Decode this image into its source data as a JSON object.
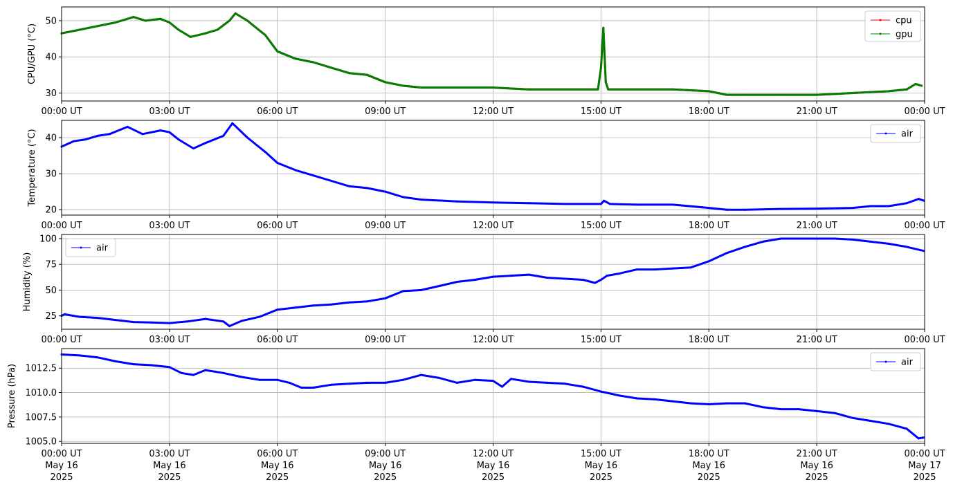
{
  "figure": {
    "x_tick_labels": [
      "00:00 UT",
      "03:00 UT",
      "06:00 UT",
      "09:00 UT",
      "12:00 UT",
      "15:00 UT",
      "18:00 UT",
      "21:00 UT",
      "00:00 UT"
    ],
    "x_tick_dates": [
      "May 16",
      "May 16",
      "May 16",
      "May 16",
      "May 16",
      "May 16",
      "May 16",
      "May 16",
      "May 17"
    ],
    "x_tick_years": [
      "2025",
      "2025",
      "2025",
      "2025",
      "2025",
      "2025",
      "2025",
      "2025",
      "2025"
    ]
  },
  "chart_data": [
    {
      "type": "line",
      "ylabel": "CPU/GPU (°C)",
      "xlim": [
        "2025-05-16 00:00",
        "2025-05-17 00:00"
      ],
      "ylim": [
        27.8,
        53.8
      ],
      "yticks": [
        30,
        40,
        50
      ],
      "ytick_labels": [
        "30",
        "40",
        "50"
      ],
      "grid": true,
      "legend": "upper right",
      "series": [
        {
          "name": "cpu",
          "color": "#ff0000",
          "x": [
            "00:00",
            "00:30",
            "01:00",
            "01:30",
            "02:00",
            "02:20",
            "02:45",
            "03:00",
            "03:15",
            "03:35",
            "04:00",
            "04:20",
            "04:40",
            "04:50",
            "05:10",
            "05:40",
            "06:00",
            "06:30",
            "07:00",
            "07:30",
            "08:00",
            "08:30",
            "09:00",
            "09:30",
            "10:00",
            "11:00",
            "12:00",
            "13:00",
            "14:00",
            "14:55",
            "15:00",
            "15:04",
            "15:08",
            "15:12",
            "16:00",
            "17:00",
            "18:00",
            "18:30",
            "19:00",
            "20:00",
            "21:00",
            "22:00",
            "23:00",
            "23:30",
            "23:45",
            "23:55"
          ],
          "y": [
            46.5,
            47.5,
            48.5,
            49.5,
            51,
            50,
            50.5,
            49.5,
            47.5,
            45.5,
            46.5,
            47.5,
            50,
            52,
            50,
            46,
            41.5,
            39.5,
            38.5,
            37,
            35.5,
            35,
            33,
            32,
            31.5,
            31.5,
            31.5,
            31,
            31,
            31,
            37,
            48,
            33,
            31,
            31,
            31,
            30.5,
            29.5,
            29.5,
            29.5,
            29.5,
            30,
            30.5,
            31,
            32.5,
            32
          ]
        },
        {
          "name": "gpu",
          "color": "#008000",
          "x": [
            "00:00",
            "00:30",
            "01:00",
            "01:30",
            "02:00",
            "02:20",
            "02:45",
            "03:00",
            "03:15",
            "03:35",
            "04:00",
            "04:20",
            "04:40",
            "04:50",
            "05:10",
            "05:40",
            "06:00",
            "06:30",
            "07:00",
            "07:30",
            "08:00",
            "08:30",
            "09:00",
            "09:30",
            "10:00",
            "11:00",
            "12:00",
            "13:00",
            "14:00",
            "14:55",
            "15:00",
            "15:04",
            "15:08",
            "15:12",
            "16:00",
            "17:00",
            "18:00",
            "18:30",
            "19:00",
            "20:00",
            "21:00",
            "22:00",
            "23:00",
            "23:30",
            "23:45",
            "23:55"
          ],
          "y": [
            46.5,
            47.5,
            48.5,
            49.5,
            51,
            50,
            50.5,
            49.5,
            47.5,
            45.5,
            46.5,
            47.5,
            50,
            52,
            50,
            46,
            41.5,
            39.5,
            38.5,
            37,
            35.5,
            35,
            33,
            32,
            31.5,
            31.5,
            31.5,
            31,
            31,
            31,
            37,
            48,
            33,
            31,
            31,
            31,
            30.5,
            29.5,
            29.5,
            29.5,
            29.5,
            30,
            30.5,
            31,
            32.5,
            32
          ]
        }
      ]
    },
    {
      "type": "line",
      "ylabel": "Temperature (°C)",
      "xlim": [
        "2025-05-16 00:00",
        "2025-05-17 00:00"
      ],
      "ylim": [
        18.5,
        44.8
      ],
      "yticks": [
        20,
        30,
        40
      ],
      "ytick_labels": [
        "20",
        "30",
        "40"
      ],
      "grid": true,
      "legend": "upper right",
      "series": [
        {
          "name": "air",
          "color": "#0000ff",
          "x": [
            "00:00",
            "00:20",
            "00:40",
            "01:00",
            "01:20",
            "01:50",
            "02:15",
            "02:45",
            "03:00",
            "03:15",
            "03:40",
            "04:00",
            "04:30",
            "04:45",
            "05:10",
            "05:40",
            "06:00",
            "06:30",
            "07:00",
            "07:30",
            "08:00",
            "08:30",
            "09:00",
            "09:30",
            "10:00",
            "11:00",
            "12:00",
            "13:00",
            "14:00",
            "15:00",
            "15:05",
            "15:15",
            "16:00",
            "17:00",
            "18:00",
            "18:30",
            "19:00",
            "20:00",
            "21:00",
            "22:00",
            "22:30",
            "23:00",
            "23:30",
            "23:50",
            "23:59"
          ],
          "y": [
            37.5,
            39,
            39.5,
            40.5,
            41,
            43,
            41,
            42,
            41.5,
            39.5,
            37,
            38.5,
            40.5,
            44,
            40,
            36,
            33,
            31,
            29.5,
            28,
            26.5,
            26,
            25,
            23.5,
            22.8,
            22.3,
            22,
            21.8,
            21.6,
            21.6,
            22.5,
            21.6,
            21.4,
            21.4,
            20.5,
            20,
            20,
            20.2,
            20.3,
            20.5,
            21,
            21,
            21.8,
            23,
            22.5
          ]
        }
      ]
    },
    {
      "type": "line",
      "ylabel": "Humidity (%)",
      "xlim": [
        "2025-05-16 00:00",
        "2025-05-17 00:00"
      ],
      "ylim": [
        12,
        104
      ],
      "yticks": [
        25,
        50,
        75,
        100
      ],
      "ytick_labels": [
        "25",
        "50",
        "75",
        "100"
      ],
      "grid": true,
      "legend": "upper left",
      "series": [
        {
          "name": "air",
          "color": "#0000ff",
          "x": [
            "00:00",
            "00:05",
            "00:30",
            "01:00",
            "01:30",
            "02:00",
            "02:30",
            "03:00",
            "03:30",
            "04:00",
            "04:30",
            "04:40",
            "05:00",
            "05:30",
            "06:00",
            "06:30",
            "07:00",
            "07:30",
            "08:00",
            "08:30",
            "09:00",
            "09:30",
            "10:00",
            "10:30",
            "11:00",
            "11:30",
            "12:00",
            "12:30",
            "13:00",
            "13:30",
            "14:00",
            "14:30",
            "14:50",
            "15:00",
            "15:10",
            "15:30",
            "16:00",
            "16:30",
            "17:00",
            "17:30",
            "18:00",
            "18:30",
            "19:00",
            "19:30",
            "20:00",
            "20:30",
            "21:00",
            "21:30",
            "22:00",
            "22:30",
            "23:00",
            "23:30",
            "23:59"
          ],
          "y": [
            25,
            26.5,
            24,
            23,
            21,
            19,
            18.5,
            18,
            19.5,
            22,
            19.5,
            15,
            20,
            24,
            31,
            33,
            35,
            36,
            38,
            39,
            42,
            49,
            50,
            54,
            58,
            60,
            63,
            64,
            65,
            62,
            61,
            60,
            57,
            60,
            64,
            66,
            70,
            70,
            71,
            72,
            78,
            86,
            92,
            97,
            100,
            100,
            100,
            100,
            99,
            97,
            95,
            92,
            88
          ]
        }
      ]
    },
    {
      "type": "line",
      "ylabel": "Pressure (hPa)",
      "xlim": [
        "2025-05-16 00:00",
        "2025-05-17 00:00"
      ],
      "ylim": [
        1004.8,
        1014.5
      ],
      "yticks": [
        1005.0,
        1007.5,
        1010.0,
        1012.5
      ],
      "ytick_labels": [
        "1005.0",
        "1007.5",
        "1010.0",
        "1012.5"
      ],
      "grid": true,
      "legend": "upper right",
      "series": [
        {
          "name": "air",
          "color": "#0000ff",
          "x": [
            "00:00",
            "00:30",
            "01:00",
            "01:30",
            "02:00",
            "02:30",
            "03:00",
            "03:20",
            "03:40",
            "04:00",
            "04:30",
            "05:00",
            "05:30",
            "06:00",
            "06:20",
            "06:40",
            "07:00",
            "07:30",
            "08:00",
            "08:30",
            "09:00",
            "09:30",
            "10:00",
            "10:30",
            "11:00",
            "11:30",
            "12:00",
            "12:15",
            "12:30",
            "13:00",
            "13:30",
            "14:00",
            "14:30",
            "15:00",
            "15:30",
            "16:00",
            "16:30",
            "17:00",
            "17:30",
            "18:00",
            "18:30",
            "19:00",
            "19:30",
            "20:00",
            "20:30",
            "21:00",
            "21:30",
            "22:00",
            "22:30",
            "23:00",
            "23:30",
            "23:50",
            "23:59"
          ],
          "y": [
            1013.9,
            1013.8,
            1013.6,
            1013.2,
            1012.9,
            1012.8,
            1012.6,
            1012.0,
            1011.8,
            1012.3,
            1012.0,
            1011.6,
            1011.3,
            1011.3,
            1011.0,
            1010.5,
            1010.5,
            1010.8,
            1010.9,
            1011.0,
            1011.0,
            1011.3,
            1011.8,
            1011.5,
            1011.0,
            1011.3,
            1011.2,
            1010.6,
            1011.4,
            1011.1,
            1011.0,
            1010.9,
            1010.6,
            1010.1,
            1009.7,
            1009.4,
            1009.3,
            1009.1,
            1008.9,
            1008.8,
            1008.9,
            1008.9,
            1008.5,
            1008.3,
            1008.3,
            1008.1,
            1007.9,
            1007.4,
            1007.1,
            1006.8,
            1006.3,
            1005.3,
            1005.4
          ]
        }
      ]
    }
  ]
}
